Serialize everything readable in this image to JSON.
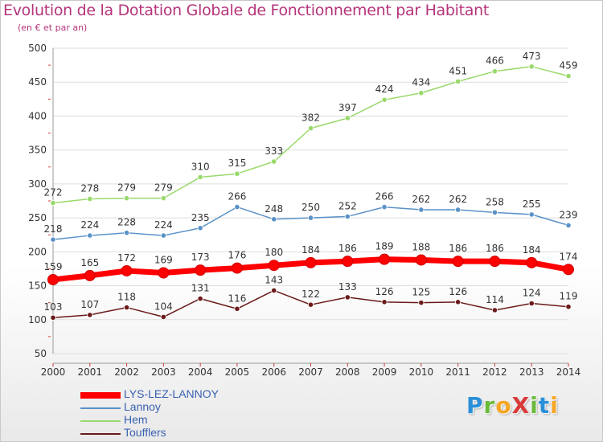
{
  "header": {
    "title": "Evolution de la Dotation Globale de Fonctionnement par Habitant",
    "subtitle": "(en € et par an)"
  },
  "logo": {
    "text": "ProXiti",
    "letters": [
      {
        "ch": "P",
        "color": "#2a8fd8"
      },
      {
        "ch": "r",
        "color": "#6aba3a"
      },
      {
        "ch": "o",
        "color": "#f5a623"
      },
      {
        "ch": "X",
        "color": "#d93a3a"
      },
      {
        "ch": "i",
        "color": "#6aba3a"
      },
      {
        "ch": "t",
        "color": "#2a8fd8"
      },
      {
        "ch": "i",
        "color": "#f5a623"
      }
    ]
  },
  "chart_data": {
    "type": "line",
    "title": "Evolution de la Dotation Globale de Fonctionnement par Habitant",
    "subtitle": "(en € et par an)",
    "xlabel": "",
    "ylabel": "",
    "x": [
      "2000",
      "2001",
      "2002",
      "2003",
      "2004",
      "2005",
      "2006",
      "2007",
      "2008",
      "2009",
      "2010",
      "2011",
      "2012",
      "2013",
      "2014"
    ],
    "ylim": [
      50,
      500
    ],
    "yticks": [
      50,
      100,
      150,
      200,
      250,
      300,
      350,
      400,
      450,
      500
    ],
    "grid": "horizontal",
    "legend_position": "bottom-left",
    "series": [
      {
        "name": "LYS-LEZ-LANNOY",
        "color": "#ff0000",
        "values": [
          159,
          165,
          172,
          169,
          173,
          176,
          180,
          184,
          186,
          189,
          188,
          186,
          186,
          184,
          174
        ]
      },
      {
        "name": "Lannoy",
        "color": "#5a92c8",
        "values": [
          218,
          224,
          228,
          224,
          235,
          266,
          248,
          250,
          252,
          266,
          262,
          262,
          258,
          255,
          239
        ]
      },
      {
        "name": "Hem",
        "color": "#99d96b",
        "values": [
          272,
          278,
          279,
          279,
          310,
          315,
          333,
          382,
          397,
          424,
          434,
          451,
          466,
          473,
          459
        ]
      },
      {
        "name": "Toufflers",
        "color": "#6b1a1a",
        "values": [
          103,
          107,
          118,
          104,
          131,
          116,
          143,
          122,
          133,
          126,
          125,
          126,
          114,
          124,
          119
        ]
      }
    ]
  }
}
